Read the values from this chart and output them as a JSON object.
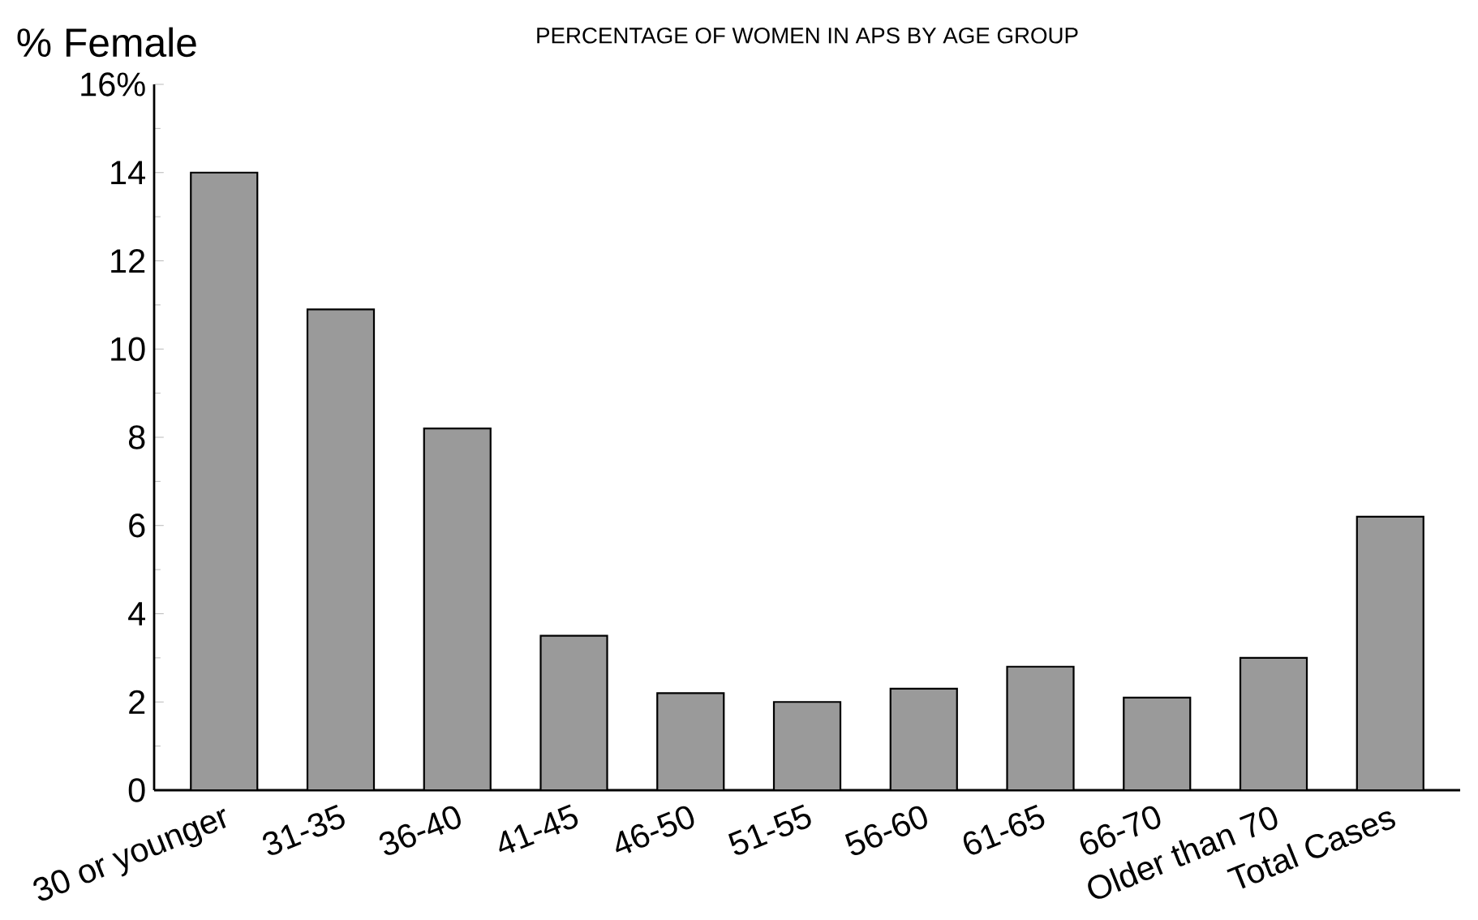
{
  "chart_data": {
    "type": "bar",
    "title": "PERCENTAGE OF WOMEN IN APS BY AGE GROUP",
    "ylabel": "% Female",
    "categories": [
      "30 or younger",
      "31-35",
      "36-40",
      "41-45",
      "46-50",
      "51-55",
      "56-60",
      "61-65",
      "66-70",
      "Older than 70",
      "Total Cases"
    ],
    "values": [
      14.0,
      10.9,
      8.2,
      3.5,
      2.2,
      2.0,
      2.3,
      2.8,
      2.1,
      3.0,
      6.2
    ],
    "color": "#9a9a9a",
    "ylim": [
      0,
      16
    ],
    "yticks": [
      0,
      2,
      4,
      6,
      8,
      10,
      12,
      14,
      {
        "value": 16,
        "label": "16%"
      }
    ],
    "grid": false
  }
}
